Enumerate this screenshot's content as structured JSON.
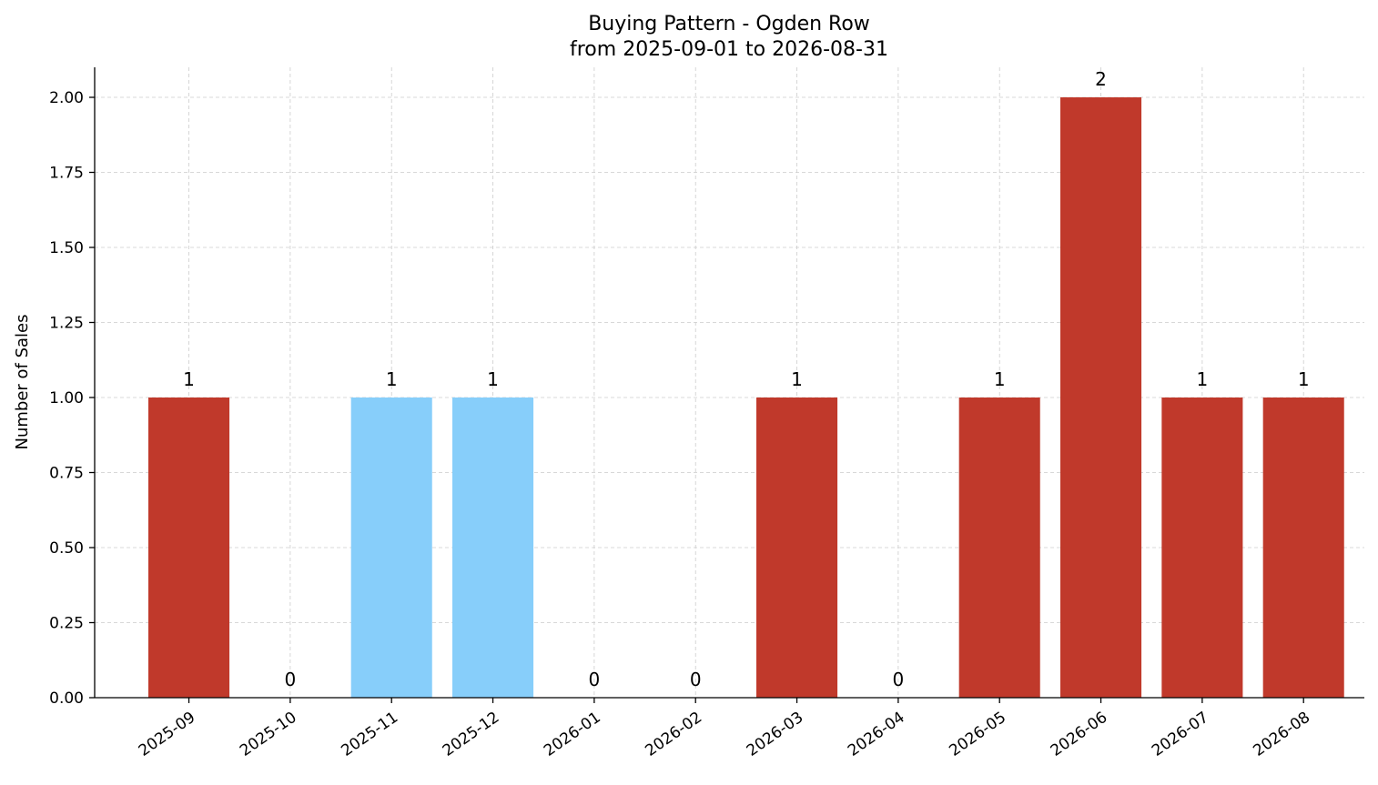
{
  "chart_data": {
    "type": "bar",
    "title": "Buying Pattern - Ogden Row",
    "subtitle": "from 2025-09-01 to 2026-08-31",
    "xlabel": "",
    "ylabel": "Number of Sales",
    "categories": [
      "2025-09",
      "2025-10",
      "2025-11",
      "2025-12",
      "2026-01",
      "2026-02",
      "2026-03",
      "2026-04",
      "2026-05",
      "2026-06",
      "2026-07",
      "2026-08"
    ],
    "values": [
      1,
      0,
      1,
      1,
      0,
      0,
      1,
      0,
      1,
      2,
      1,
      1
    ],
    "bar_colors": [
      "#c0392b",
      "#c0392b",
      "#87cefa",
      "#87cefa",
      "#c0392b",
      "#c0392b",
      "#c0392b",
      "#c0392b",
      "#c0392b",
      "#c0392b",
      "#c0392b",
      "#c0392b"
    ],
    "ylim": [
      0,
      2.1
    ],
    "yticks": [
      "0.00",
      "0.25",
      "0.50",
      "0.75",
      "1.00",
      "1.25",
      "1.50",
      "1.75",
      "2.00"
    ],
    "grid": true,
    "data_labels": true
  }
}
